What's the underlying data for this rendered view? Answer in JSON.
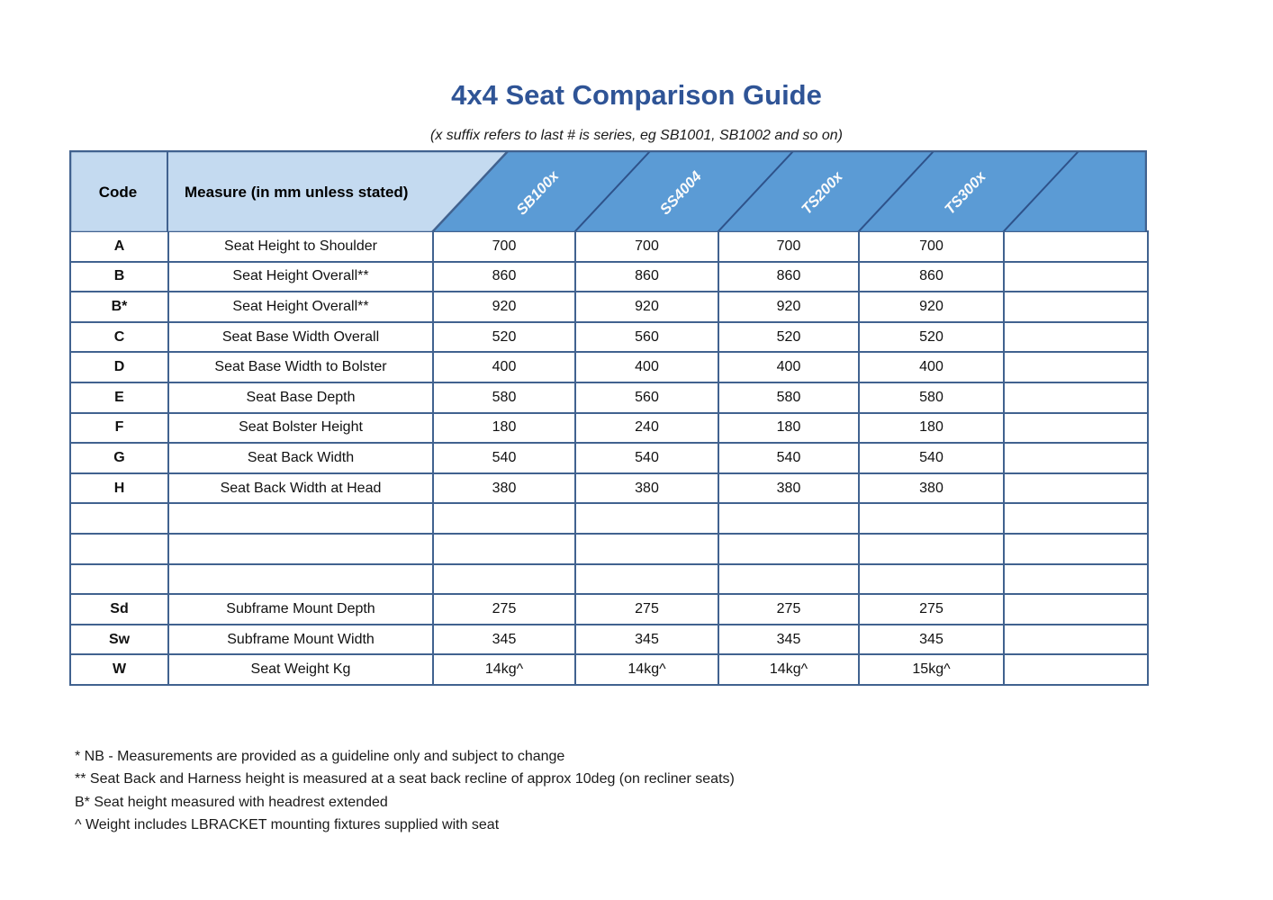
{
  "title": "4x4 Seat Comparison Guide",
  "subtitle": "(x suffix refers to last # is series, eg SB1001, SB1002 and so on)",
  "colors": {
    "title_blue": "#2F5496",
    "header_light_blue": "#C4DAF0",
    "header_accent_blue": "#5B9BD5",
    "grid_border_blue": "#41628F"
  },
  "table": {
    "code_header": "Code",
    "measure_header": "Measure (in mm unless stated)",
    "products": [
      "SB100x",
      "SS4004",
      "TS200x",
      "TS300x",
      ""
    ],
    "rows": [
      {
        "code": "A",
        "measure": "Seat Height to Shoulder",
        "values": [
          "700",
          "700",
          "700",
          "700",
          ""
        ]
      },
      {
        "code": "B",
        "measure": "Seat Height Overall**",
        "values": [
          "860",
          "860",
          "860",
          "860",
          ""
        ]
      },
      {
        "code": "B*",
        "measure": "Seat Height Overall**",
        "values": [
          "920",
          "920",
          "920",
          "920",
          ""
        ]
      },
      {
        "code": "C",
        "measure": "Seat Base Width Overall",
        "values": [
          "520",
          "560",
          "520",
          "520",
          ""
        ]
      },
      {
        "code": "D",
        "measure": "Seat Base Width to Bolster",
        "values": [
          "400",
          "400",
          "400",
          "400",
          ""
        ]
      },
      {
        "code": "E",
        "measure": "Seat Base Depth",
        "values": [
          "580",
          "560",
          "580",
          "580",
          ""
        ]
      },
      {
        "code": "F",
        "measure": "Seat Bolster Height",
        "values": [
          "180",
          "240",
          "180",
          "180",
          ""
        ]
      },
      {
        "code": "G",
        "measure": "Seat Back Width",
        "values": [
          "540",
          "540",
          "540",
          "540",
          ""
        ]
      },
      {
        "code": "H",
        "measure": "Seat Back Width at Head",
        "values": [
          "380",
          "380",
          "380",
          "380",
          ""
        ]
      },
      {
        "code": "",
        "measure": "",
        "values": [
          "",
          "",
          "",
          "",
          ""
        ]
      },
      {
        "code": "",
        "measure": "",
        "values": [
          "",
          "",
          "",
          "",
          ""
        ]
      },
      {
        "code": "",
        "measure": "",
        "values": [
          "",
          "",
          "",
          "",
          ""
        ]
      },
      {
        "code": "Sd",
        "measure": "Subframe Mount Depth",
        "values": [
          "275",
          "275",
          "275",
          "275",
          ""
        ]
      },
      {
        "code": "Sw",
        "measure": "Subframe Mount Width",
        "values": [
          "345",
          "345",
          "345",
          "345",
          ""
        ]
      },
      {
        "code": "W",
        "measure": "Seat Weight Kg",
        "values": [
          "14kg^",
          "14kg^",
          "14kg^",
          "15kg^",
          ""
        ]
      }
    ]
  },
  "footnotes": [
    "* NB - Measurements are provided as a guideline only and subject to change",
    "** Seat Back and Harness height is measured at a seat back recline of approx 10deg (on recliner seats)",
    "B* Seat height measured with headrest extended",
    "^ Weight includes LBRACKET mounting fixtures supplied with seat"
  ]
}
